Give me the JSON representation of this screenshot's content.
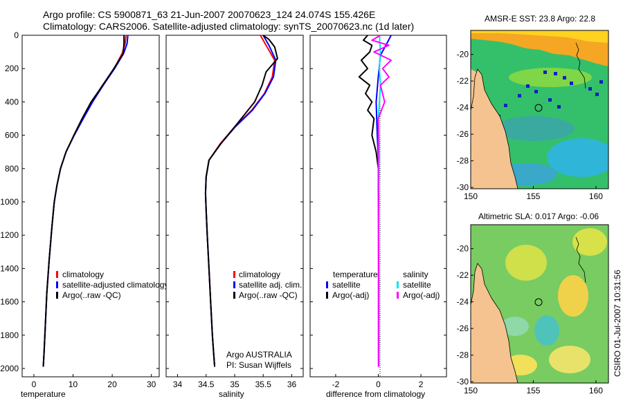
{
  "header": {
    "line1": "Argo profile: CS 5900871_63 21-Jun-2007 20070623_124 24.074S 155.426E",
    "line2": "Climatology: CARS2006. Satellite-adjusted climatology: synTS_20070623.nc (1d later)"
  },
  "side_label": "CSIRO 01-Jul-2007 10:31:56",
  "credit": {
    "line1": "Argo AUSTRALIA",
    "line2": "PI: Susan Wijffels"
  },
  "colors": {
    "climatology": "#ff0000",
    "satellite": "#0000ff",
    "argo": "#000000",
    "sat_salinity": "#00e5ee",
    "argo_salinity": "#ff00ff",
    "land": "#f4c38f"
  },
  "chart_data": [
    {
      "id": "temperature",
      "type": "line",
      "xlabel": "temperature",
      "ylabel": "",
      "xlim": [
        -3,
        32
      ],
      "ylim": [
        2050,
        0
      ],
      "xticks": [
        0,
        10,
        20,
        30
      ],
      "yticks": [
        0,
        200,
        400,
        600,
        800,
        1000,
        1200,
        1400,
        1600,
        1800,
        2000
      ],
      "legend": [
        "climatology",
        "satellite-adjusted climatology",
        "Argo(..raw -QC)"
      ],
      "series": [
        {
          "name": "climatology",
          "color": "#ff0000",
          "x": [
            23.5,
            23.3,
            22.5,
            20.5,
            17.5,
            14.8,
            12.5,
            10.3,
            8.2,
            6.8,
            5.9,
            5.2,
            4.6,
            3.9,
            3.3,
            2.9,
            2.6,
            2.4
          ],
          "y": [
            0,
            50,
            110,
            200,
            300,
            400,
            500,
            600,
            700,
            800,
            900,
            1000,
            1150,
            1350,
            1550,
            1750,
            1900,
            1990
          ]
        },
        {
          "name": "satellite-adjusted climatology",
          "color": "#0000ff",
          "x": [
            24.0,
            23.8,
            22.9,
            20.6,
            17.7,
            15.0,
            12.6,
            10.3,
            8.2,
            6.8,
            5.9,
            5.2,
            4.6,
            3.9,
            3.3,
            2.9,
            2.6,
            2.4
          ],
          "y": [
            0,
            50,
            110,
            200,
            300,
            400,
            500,
            600,
            700,
            800,
            900,
            1000,
            1150,
            1350,
            1550,
            1750,
            1900,
            1990
          ]
        },
        {
          "name": "Argo(..raw -QC)",
          "color": "#000000",
          "x": [
            23.0,
            23.0,
            22.8,
            20.4,
            17.6,
            14.6,
            12.3,
            10.2,
            8.2,
            6.8,
            5.9,
            5.2,
            4.6,
            3.9,
            3.3,
            2.9,
            2.6,
            2.4
          ],
          "y": [
            0,
            50,
            110,
            200,
            300,
            400,
            500,
            600,
            700,
            800,
            900,
            1000,
            1150,
            1350,
            1550,
            1750,
            1900,
            1990
          ]
        }
      ]
    },
    {
      "id": "salinity",
      "type": "line",
      "xlabel": "salinity",
      "ylabel": "",
      "xlim": [
        33.8,
        36.2
      ],
      "ylim": [
        2050,
        0
      ],
      "xticks": [
        34,
        34.5,
        35,
        35.5,
        36
      ],
      "legend": [
        "climatology",
        "satellite adj. clim.",
        "Argo(..raw -QC)"
      ],
      "series": [
        {
          "name": "climatology",
          "color": "#ff0000",
          "x": [
            35.45,
            35.55,
            35.7,
            35.66,
            35.52,
            35.3,
            35.0,
            34.75,
            34.55,
            34.5,
            34.49,
            34.5,
            34.52,
            34.55,
            34.58,
            34.61,
            34.63,
            34.65
          ],
          "y": [
            0,
            60,
            150,
            250,
            350,
            450,
            550,
            650,
            750,
            850,
            950,
            1050,
            1200,
            1400,
            1600,
            1800,
            1900,
            1990
          ]
        },
        {
          "name": "satellite adj. clim.",
          "color": "#0000ff",
          "x": [
            35.5,
            35.6,
            35.72,
            35.68,
            35.53,
            35.31,
            35.01,
            34.76,
            34.55,
            34.5,
            34.49,
            34.5,
            34.52,
            34.55,
            34.58,
            34.61,
            34.63,
            34.65
          ],
          "y": [
            0,
            60,
            150,
            250,
            350,
            450,
            550,
            650,
            750,
            850,
            950,
            1050,
            1200,
            1400,
            1600,
            1800,
            1900,
            1990
          ]
        },
        {
          "name": "Argo(..raw -QC)",
          "color": "#000000",
          "x": [
            35.5,
            35.6,
            35.7,
            35.75,
            35.65,
            35.55,
            35.48,
            35.35,
            35.0,
            34.76,
            34.55,
            34.5,
            34.49,
            34.5,
            34.52,
            34.55,
            34.58,
            34.61,
            34.63,
            34.65
          ],
          "y": [
            0,
            25,
            70,
            140,
            180,
            220,
            300,
            400,
            550,
            650,
            750,
            850,
            950,
            1050,
            1200,
            1400,
            1600,
            1800,
            1900,
            1990
          ]
        }
      ]
    },
    {
      "id": "difference",
      "type": "line",
      "xlabel": "difference from climatology",
      "ylabel": "",
      "xlim": [
        -3.2,
        3.2
      ],
      "ylim": [
        2050,
        0
      ],
      "xticks": [
        -2,
        0,
        2
      ],
      "legend_headers": [
        "temperature",
        "salinity"
      ],
      "legend": [
        "satellite",
        "Argo(-adj)",
        "satellite",
        "Argo(-adj)"
      ],
      "series": [
        {
          "name": "temperature satellite",
          "color": "#0000ff",
          "x": [
            0.6,
            0.4,
            0.1,
            0.0,
            -0.1,
            -0.05,
            0.02,
            0.0,
            0.0,
            0.0
          ],
          "y": [
            0,
            50,
            120,
            250,
            400,
            600,
            800,
            1200,
            1600,
            1990
          ]
        },
        {
          "name": "temperature Argo(-adj)",
          "color": "#000000",
          "x": [
            -0.5,
            -0.7,
            -0.3,
            -0.4,
            -0.8,
            -0.5,
            -0.9,
            -0.4,
            -0.6,
            -0.3,
            -0.5,
            -0.2,
            -0.3,
            -0.1,
            0.0,
            0.0,
            0.0
          ],
          "y": [
            0,
            30,
            60,
            100,
            150,
            200,
            250,
            300,
            350,
            400,
            450,
            500,
            600,
            700,
            800,
            1200,
            1990
          ]
        },
        {
          "name": "salinity satellite",
          "color": "#00e5ee",
          "x": [
            0.05,
            0.1,
            0.05,
            0.1,
            0.0,
            0.05,
            0.0,
            0.0
          ],
          "y": [
            0,
            100,
            200,
            300,
            500,
            700,
            1000,
            1990
          ]
        },
        {
          "name": "salinity Argo(-adj)",
          "color": "#ff00ff",
          "x": [
            0.1,
            -0.3,
            0.5,
            -0.2,
            0.6,
            0.2,
            0.5,
            0.1,
            0.3,
            0.0,
            0.0,
            0.02,
            0.02
          ],
          "y": [
            0,
            30,
            60,
            100,
            150,
            200,
            250,
            300,
            400,
            500,
            800,
            1500,
            1990
          ]
        }
      ]
    },
    {
      "id": "sst_map",
      "type": "heatmap",
      "title": "AMSR-E SST: 23.8 Argo: 22.8",
      "xticks": [
        150,
        155,
        160
      ],
      "yticks": [
        -20,
        -22,
        -24,
        -26,
        -28,
        -30
      ],
      "xlim": [
        150,
        161
      ],
      "ylim": [
        -30.1,
        -18.2
      ]
    },
    {
      "id": "sla_map",
      "type": "heatmap",
      "title": "Altimetric SLA: 0.017 Argo: -0.06",
      "xticks": [
        150,
        155,
        160
      ],
      "yticks": [
        -20,
        -22,
        -24,
        -26,
        -28,
        -30
      ],
      "xlim": [
        150,
        161
      ],
      "ylim": [
        -30.1,
        -18.2
      ]
    }
  ]
}
